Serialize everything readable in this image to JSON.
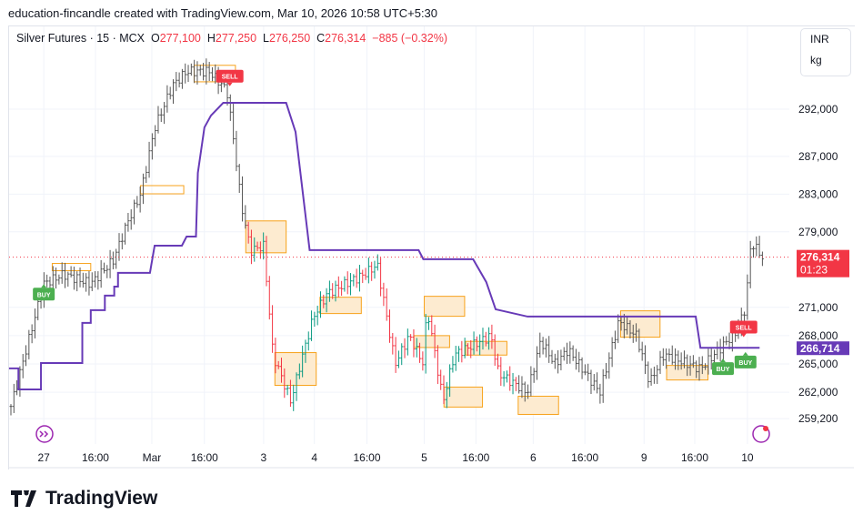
{
  "credit": "education-fincandle created with TradingView.com, Mar 10, 2026 10:58 UTC+5:30",
  "legend": {
    "symbol": "Silver Futures · 15 · MCX",
    "o_label": "O",
    "o": "277,100",
    "h_label": "H",
    "h": "277,250",
    "l_label": "L",
    "l": "276,250",
    "c_label": "C",
    "c": "276,314",
    "change": "−885 (−0.32%)"
  },
  "units": {
    "currency": "INR",
    "unit": "kg"
  },
  "logo": "TradingView",
  "colors": {
    "up": "#089981",
    "down": "#f23645",
    "bar": "#555",
    "line": "#673ab7",
    "box": "#f7a21b",
    "boxfill": "#fdebd0"
  },
  "chart_data": {
    "type": "candlestick",
    "title": "Silver Futures · 15 · MCX",
    "ylim": [
      257500,
      297000
    ],
    "y_ticks": [
      {
        "v": 292000,
        "label": "292,000"
      },
      {
        "v": 287000,
        "label": "287,000"
      },
      {
        "v": 283000,
        "label": "283,000"
      },
      {
        "v": 279000,
        "label": "279,000"
      },
      {
        "v": 271000,
        "label": "271,000"
      },
      {
        "v": 268000,
        "label": "268,000"
      },
      {
        "v": 265000,
        "label": "265,000"
      },
      {
        "v": 262000,
        "label": "262,000"
      },
      {
        "v": 259200,
        "label": "259,200"
      }
    ],
    "x_ticks": [
      {
        "i": 3.5,
        "label": "27"
      },
      {
        "i": 9,
        "label": "16:00"
      },
      {
        "i": 15,
        "label": "Mar"
      },
      {
        "i": 20.6,
        "label": "16:00"
      },
      {
        "i": 26.9,
        "label": "3"
      },
      {
        "i": 32.3,
        "label": "4"
      },
      {
        "i": 37.9,
        "label": "16:00"
      },
      {
        "i": 44,
        "label": "5"
      },
      {
        "i": 49.5,
        "label": "16:00"
      },
      {
        "i": 55.6,
        "label": "6"
      },
      {
        "i": 61.1,
        "label": "16:00"
      },
      {
        "i": 67.4,
        "label": "9"
      },
      {
        "i": 72.8,
        "label": "16:00"
      },
      {
        "i": 78.4,
        "label": "10"
      }
    ],
    "last_price": {
      "value": 276314,
      "label": "276,314",
      "countdown": "01:23"
    },
    "line_value": {
      "value": 266714,
      "label": "266,714"
    },
    "price_path": [
      [
        0,
        260500
      ],
      [
        3.5,
        273500
      ],
      [
        5.6,
        274500
      ],
      [
        8.5,
        273500
      ],
      [
        10.9,
        276000
      ],
      [
        12.4,
        280000
      ],
      [
        13.8,
        283000
      ],
      [
        15.3,
        290000
      ],
      [
        17.2,
        294500
      ],
      [
        18.7,
        296000
      ],
      [
        21.1,
        296000
      ],
      [
        23,
        294000
      ],
      [
        23.8,
        288000
      ],
      [
        24.5,
        282000
      ],
      [
        25.5,
        277000
      ],
      [
        26.9,
        277500
      ],
      [
        27.9,
        266000
      ],
      [
        29.8,
        261000
      ],
      [
        30.8,
        265000
      ],
      [
        32.2,
        270000
      ],
      [
        33.7,
        272500
      ],
      [
        37.6,
        274500
      ],
      [
        39,
        275500
      ],
      [
        40,
        270000
      ],
      [
        40.9,
        265000
      ],
      [
        42.4,
        268000
      ],
      [
        43.9,
        265000
      ],
      [
        44.3,
        271000
      ],
      [
        46,
        261000
      ],
      [
        47.2,
        266000
      ],
      [
        49.2,
        267000
      ],
      [
        51.1,
        268000
      ],
      [
        51.9,
        264000
      ],
      [
        55,
        262000
      ],
      [
        56.4,
        267500
      ],
      [
        57.9,
        265000
      ],
      [
        59.3,
        266500
      ],
      [
        62.7,
        262000
      ],
      [
        64.7,
        269500
      ],
      [
        66.6,
        268000
      ],
      [
        68,
        263000
      ],
      [
        69.5,
        266000
      ],
      [
        73.4,
        264500
      ],
      [
        77.3,
        268500
      ],
      [
        78.2,
        271000
      ],
      [
        78.8,
        278000
      ],
      [
        80,
        276300
      ]
    ],
    "trail_line": [
      [
        -0.2,
        264530
      ],
      [
        0.8,
        264530
      ],
      [
        0.8,
        262300
      ],
      [
        3.2,
        262300
      ],
      [
        3.2,
        265100
      ],
      [
        7.6,
        265100
      ],
      [
        7.6,
        269350
      ],
      [
        8.5,
        269350
      ],
      [
        8.5,
        270700
      ],
      [
        10,
        270700
      ],
      [
        10,
        272240
      ],
      [
        11,
        272240
      ],
      [
        11,
        273200
      ],
      [
        11.4,
        273200
      ],
      [
        11.4,
        274650
      ],
      [
        14.8,
        274650
      ],
      [
        15.3,
        277540
      ],
      [
        18.2,
        277540
      ],
      [
        18.7,
        278500
      ],
      [
        19.7,
        278500
      ],
      [
        19.9,
        285250
      ],
      [
        20.6,
        290070
      ],
      [
        21.3,
        291330
      ],
      [
        22.6,
        292670
      ],
      [
        29.3,
        292670
      ],
      [
        30.3,
        289590
      ],
      [
        31.8,
        277060
      ],
      [
        43.4,
        277060
      ],
      [
        43.9,
        276100
      ],
      [
        49.2,
        276100
      ],
      [
        50.6,
        273680
      ],
      [
        51.6,
        270790
      ],
      [
        55,
        270020
      ],
      [
        72.9,
        270020
      ],
      [
        73.4,
        266714
      ],
      [
        79.7,
        266714
      ]
    ],
    "zones": [
      [
        4.4,
        8.5,
        275650,
        274880,
        false
      ],
      [
        13.8,
        18.4,
        283900,
        283030,
        false
      ],
      [
        19.5,
        23.9,
        296650,
        294900,
        false
      ],
      [
        25,
        29.3,
        280160,
        276780,
        true
      ],
      [
        28.1,
        32.5,
        266200,
        262730,
        true
      ],
      [
        32.9,
        37.3,
        272070,
        270340,
        true
      ],
      [
        44,
        48.3,
        272170,
        270050,
        true
      ],
      [
        42.9,
        46.7,
        268000,
        266740,
        true
      ],
      [
        48.4,
        52.8,
        267390,
        265940,
        true
      ],
      [
        46.1,
        50.2,
        262550,
        260430,
        true
      ],
      [
        54,
        58.3,
        261580,
        259650,
        true
      ],
      [
        64.9,
        69.1,
        270630,
        267840,
        true
      ],
      [
        69.8,
        74.2,
        264840,
        263300,
        true
      ]
    ],
    "signals": [
      {
        "i": 3.5,
        "price": 272400,
        "label": "BUY",
        "type": "buy"
      },
      {
        "i": 23.3,
        "price": 295500,
        "label": "SELL",
        "type": "sell"
      },
      {
        "i": 78,
        "price": 268900,
        "label": "SELL",
        "type": "sell"
      },
      {
        "i": 75.8,
        "price": 264500,
        "label": "BUY",
        "type": "buy"
      },
      {
        "i": 78.2,
        "price": 265200,
        "label": "BUY",
        "type": "buy"
      }
    ]
  }
}
